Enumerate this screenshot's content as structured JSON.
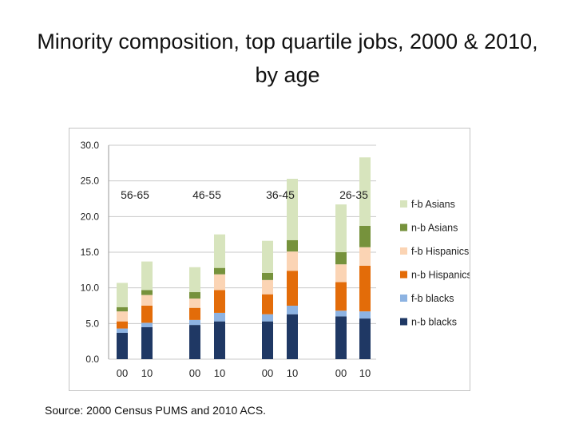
{
  "slide": {
    "title": "Minority composition, top quartile jobs, 2000 & 2010, by age",
    "source": "Source:  2000 Census PUMS and 2010 ACS."
  },
  "chart_data": {
    "type": "bar",
    "stacked": true,
    "title": "",
    "xlabel": "",
    "ylabel": "",
    "ylim": [
      0,
      30
    ],
    "yticks": [
      "0.0",
      "5.0",
      "10.0",
      "15.0",
      "20.0",
      "25.0",
      "30.0"
    ],
    "grid": true,
    "legend_position": "right",
    "groups": [
      "56-65",
      "46-55",
      "36-45",
      "26-35"
    ],
    "categories": [
      "00",
      "10",
      "00",
      "10",
      "00",
      "10",
      "00",
      "10"
    ],
    "series": [
      {
        "name": "n-b blacks",
        "color": "#1f3864",
        "values": [
          3.7,
          4.5,
          4.8,
          5.3,
          5.3,
          6.3,
          6.0,
          5.7
        ]
      },
      {
        "name": "f-b blacks",
        "color": "#8db3e2",
        "values": [
          0.6,
          0.6,
          0.7,
          1.2,
          1.0,
          1.2,
          0.8,
          1.0
        ]
      },
      {
        "name": "n-b Hispanics",
        "color": "#e36c09",
        "values": [
          1.0,
          2.4,
          1.7,
          3.2,
          2.8,
          4.9,
          4.0,
          6.4
        ]
      },
      {
        "name": "f-b Hispanics",
        "color": "#fbd4b4",
        "values": [
          1.4,
          1.5,
          1.3,
          2.2,
          2.0,
          2.7,
          2.5,
          2.6
        ]
      },
      {
        "name": "n-b Asians",
        "color": "#76923c",
        "values": [
          0.6,
          0.7,
          0.9,
          0.9,
          1.0,
          1.6,
          1.7,
          3.0
        ]
      },
      {
        "name": "f-b Asians",
        "color": "#d7e4bd",
        "values": [
          3.4,
          4.0,
          3.5,
          4.7,
          4.5,
          8.6,
          6.7,
          9.6
        ]
      }
    ]
  }
}
